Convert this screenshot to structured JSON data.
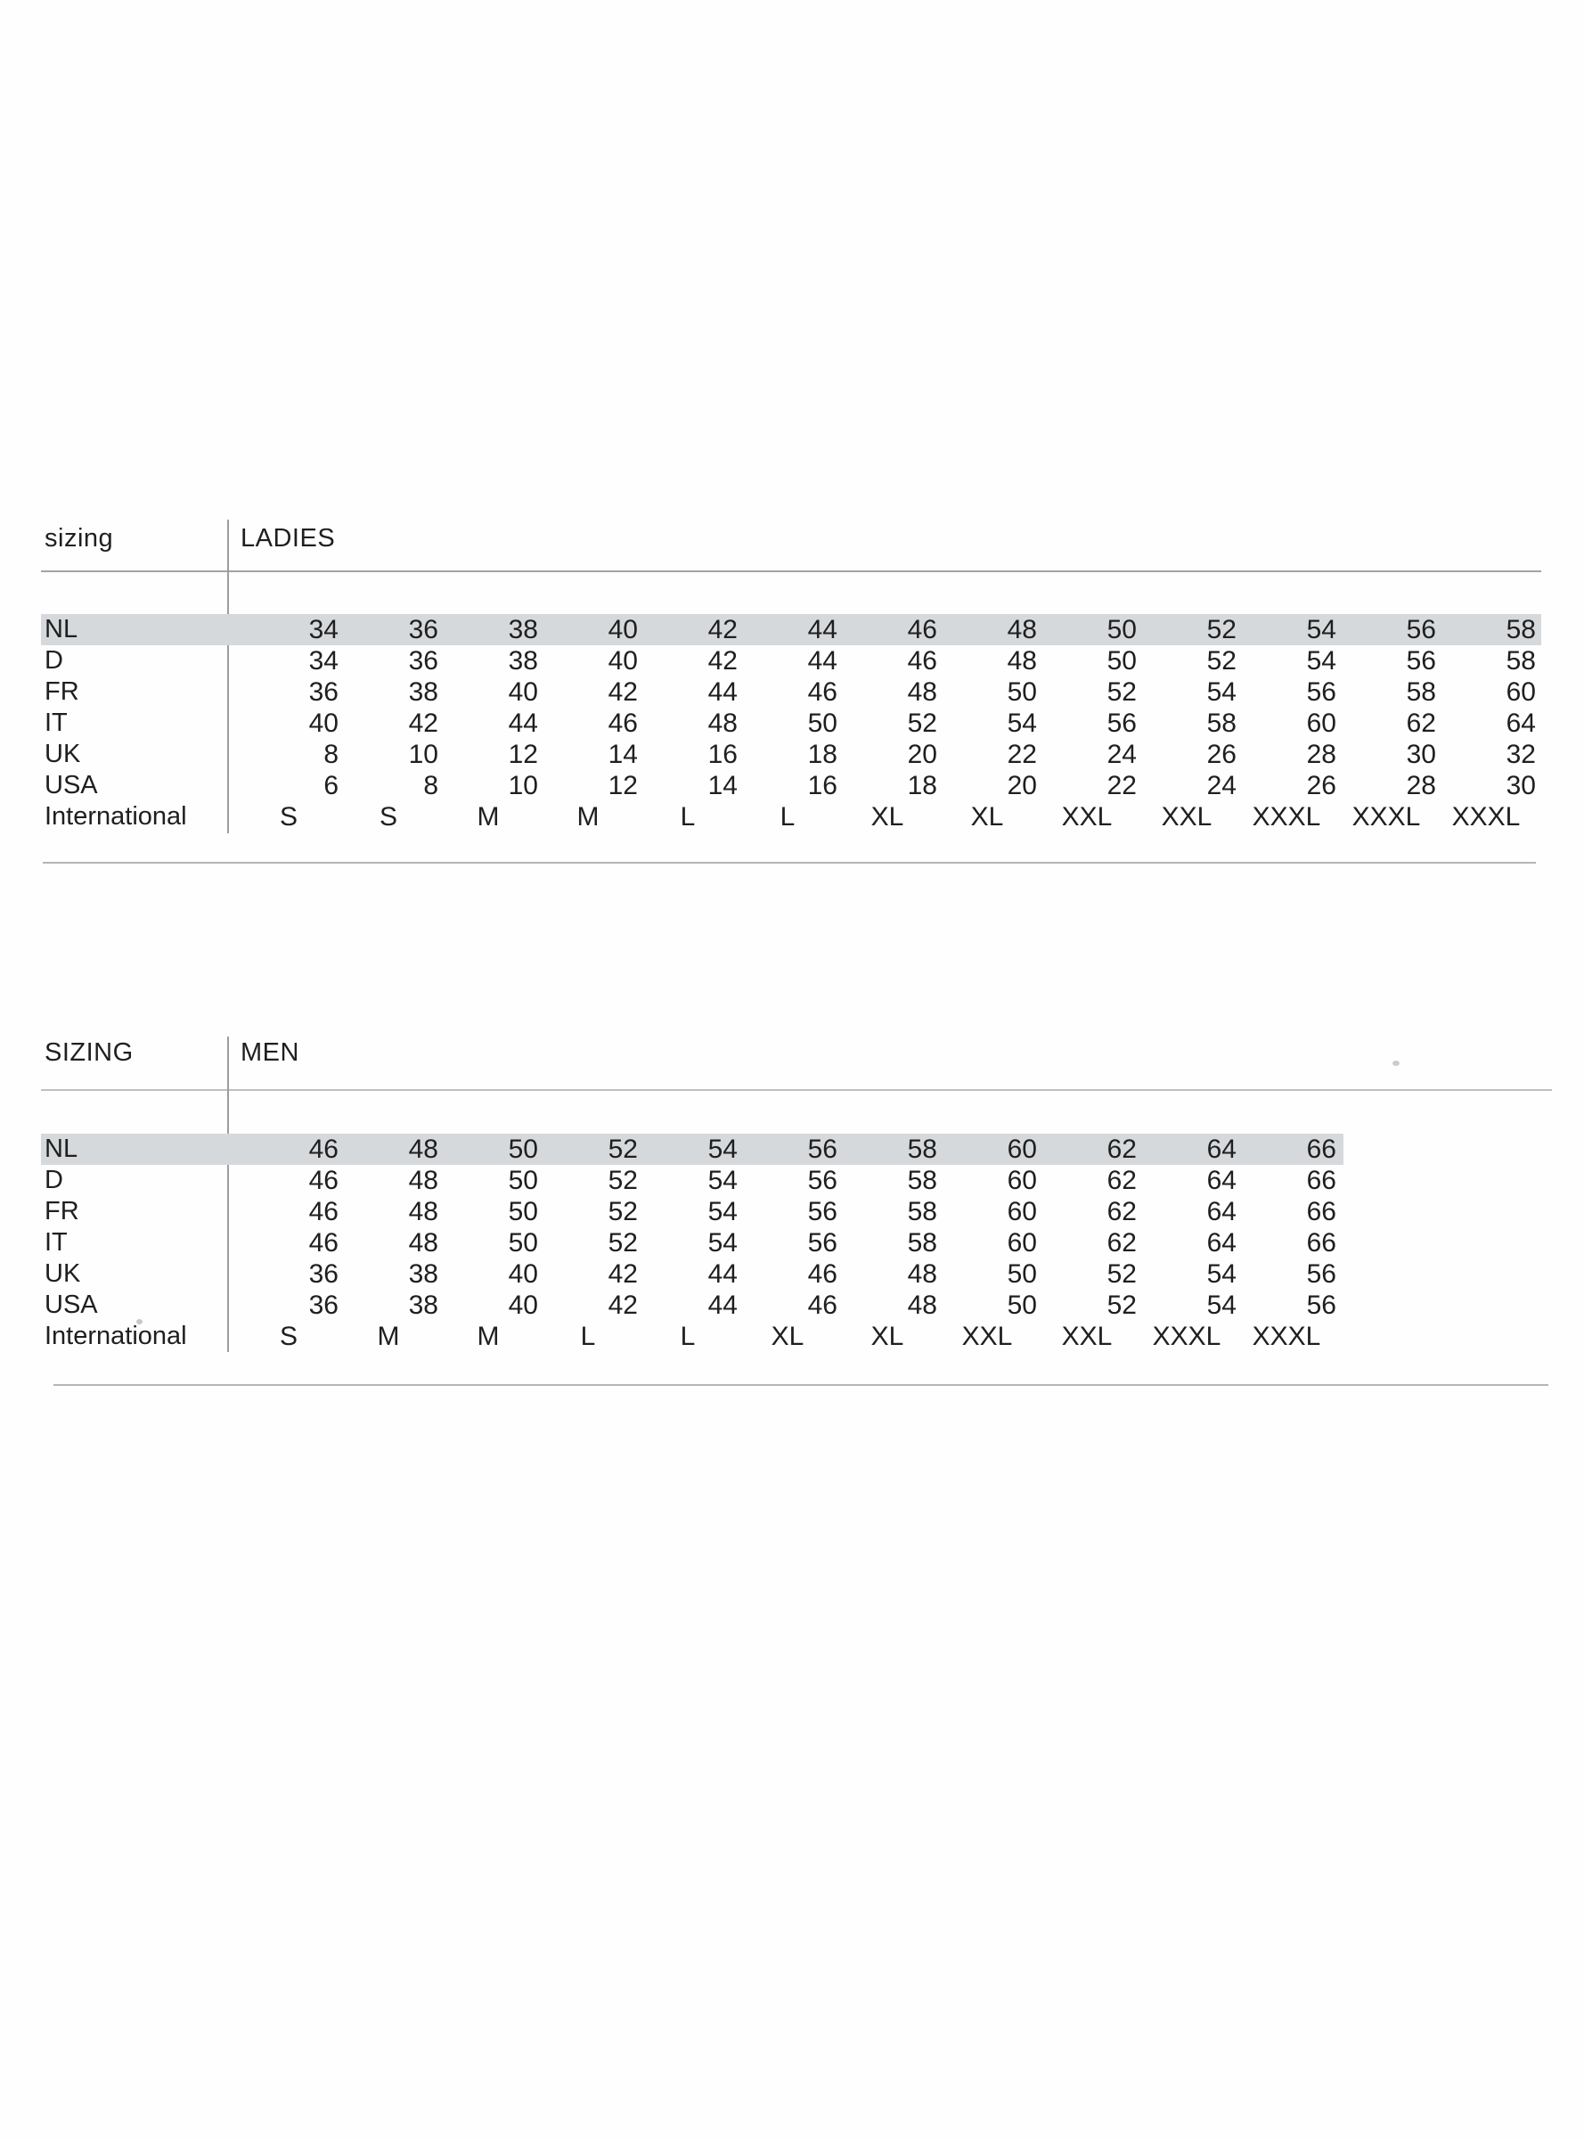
{
  "page": {
    "background": "#fefefe",
    "text_color": "#1f1f1f",
    "highlight_band_color": "#d6d9dc",
    "rule_color": "#a0a3a5"
  },
  "tables": [
    {
      "id": "ladies",
      "header_label": "sizing",
      "header_title": "LADIES",
      "rows": [
        {
          "label": "NL",
          "highlighted": true,
          "values": [
            "34",
            "36",
            "38",
            "40",
            "42",
            "44",
            "46",
            "48",
            "50",
            "52",
            "54",
            "56",
            "58"
          ]
        },
        {
          "label": "D",
          "values": [
            "34",
            "36",
            "38",
            "40",
            "42",
            "44",
            "46",
            "48",
            "50",
            "52",
            "54",
            "56",
            "58"
          ]
        },
        {
          "label": "FR",
          "values": [
            "36",
            "38",
            "40",
            "42",
            "44",
            "46",
            "48",
            "50",
            "52",
            "54",
            "56",
            "58",
            "60"
          ]
        },
        {
          "label": "IT",
          "values": [
            "40",
            "42",
            "44",
            "46",
            "48",
            "50",
            "52",
            "54",
            "56",
            "58",
            "60",
            "62",
            "64"
          ]
        },
        {
          "label": "UK",
          "values": [
            "8",
            "10",
            "12",
            "14",
            "16",
            "18",
            "20",
            "22",
            "24",
            "26",
            "28",
            "30",
            "32"
          ]
        },
        {
          "label": "USA",
          "values": [
            "6",
            "8",
            "10",
            "12",
            "14",
            "16",
            "18",
            "20",
            "22",
            "24",
            "26",
            "28",
            "30"
          ]
        },
        {
          "label": "International",
          "values": [
            "S",
            "S",
            "M",
            "M",
            "L",
            "L",
            "XL",
            "XL",
            "XXL",
            "XXL",
            "XXXL",
            "XXXL",
            "XXXL"
          ]
        }
      ]
    },
    {
      "id": "men",
      "header_label": "SIZING",
      "header_title": "MEN",
      "rows": [
        {
          "label": "NL",
          "highlighted": true,
          "values": [
            "46",
            "48",
            "50",
            "52",
            "54",
            "56",
            "58",
            "60",
            "62",
            "64",
            "66"
          ]
        },
        {
          "label": "D",
          "values": [
            "46",
            "48",
            "50",
            "52",
            "54",
            "56",
            "58",
            "60",
            "62",
            "64",
            "66"
          ]
        },
        {
          "label": "FR",
          "values": [
            "46",
            "48",
            "50",
            "52",
            "54",
            "56",
            "58",
            "60",
            "62",
            "64",
            "66"
          ]
        },
        {
          "label": "IT",
          "values": [
            "46",
            "48",
            "50",
            "52",
            "54",
            "56",
            "58",
            "60",
            "62",
            "64",
            "66"
          ]
        },
        {
          "label": "UK",
          "values": [
            "36",
            "38",
            "40",
            "42",
            "44",
            "46",
            "48",
            "50",
            "52",
            "54",
            "56"
          ]
        },
        {
          "label": "USA",
          "values": [
            "36",
            "38",
            "40",
            "42",
            "44",
            "46",
            "48",
            "50",
            "52",
            "54",
            "56"
          ]
        },
        {
          "label": "International",
          "values": [
            "S",
            "M",
            "M",
            "L",
            "L",
            "XL",
            "XL",
            "XXL",
            "XXL",
            "XXXL",
            "XXXL"
          ]
        }
      ]
    }
  ]
}
